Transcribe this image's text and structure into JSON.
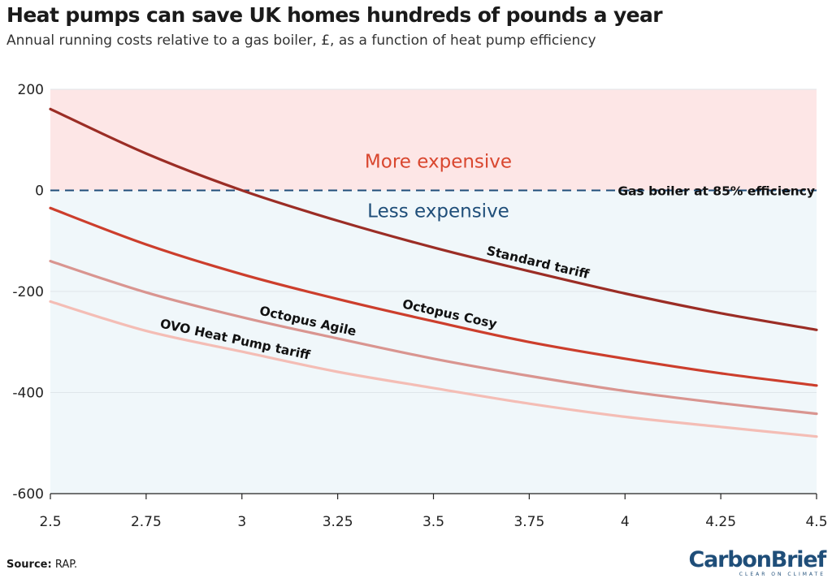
{
  "header": {
    "title": "Heat pumps can save UK homes hundreds of pounds a year",
    "subtitle": "Annual running costs relative to a gas boiler, £, as a function of heat pump efficiency"
  },
  "footer": {
    "source_label": "Source:",
    "source_text": "RAP.",
    "logo_name": "CarbonBrief",
    "logo_tagline": "CLEAR ON CLIMATE"
  },
  "colors": {
    "expensive_zone": "#fde6e6",
    "cheaper_zone": "#f0f7fa",
    "more_expensive_text": "#d9472f",
    "less_expensive_text": "#1f4e79",
    "baseline": "#1f4e79",
    "brand": "#1f4e79"
  },
  "chart_data": {
    "type": "line",
    "xlim": [
      2.5,
      4.5
    ],
    "ylim": [
      -600,
      200
    ],
    "x_ticks": [
      "2.5",
      "2.75",
      "3",
      "3.25",
      "3.5",
      "3.75",
      "4",
      "4.25",
      "4.5"
    ],
    "y_ticks": [
      "200",
      "0",
      "-200",
      "-400",
      "-600"
    ],
    "x_tick_values": [
      2.5,
      2.75,
      3,
      3.25,
      3.5,
      3.75,
      4,
      4.25,
      4.5
    ],
    "y_tick_values": [
      200,
      0,
      -200,
      -400,
      -600
    ],
    "zones": {
      "above_label": "More expensive",
      "below_label": "Less expensive"
    },
    "reference_line": {
      "value": 0,
      "label": "Gas boiler at 85% efficiency",
      "style": "dashed"
    },
    "x": [
      2.5,
      2.75,
      3,
      3.25,
      3.5,
      3.75,
      4,
      4.25,
      4.5
    ],
    "series": [
      {
        "name": "Standard tariff",
        "color": "#9b2d25",
        "values": [
          161,
          73,
          0,
          -60,
          -113,
          -160,
          -204,
          -243,
          -276
        ]
      },
      {
        "name": "Octopus Cosy",
        "color": "#cc3e2c",
        "values": [
          -35,
          -107,
          -166,
          -215,
          -259,
          -300,
          -333,
          -362,
          -386
        ]
      },
      {
        "name": "Octopus Agile",
        "color": "#d99590",
        "values": [
          -140,
          -202,
          -251,
          -293,
          -333,
          -367,
          -397,
          -421,
          -442
        ]
      },
      {
        "name": "OVO Heat Pump tariff",
        "color": "#f4bdb5",
        "values": [
          -220,
          -278,
          -319,
          -359,
          -391,
          -422,
          -448,
          -468,
          -487
        ]
      }
    ],
    "grid": "horizontal",
    "legend": "direct labels on lines"
  }
}
